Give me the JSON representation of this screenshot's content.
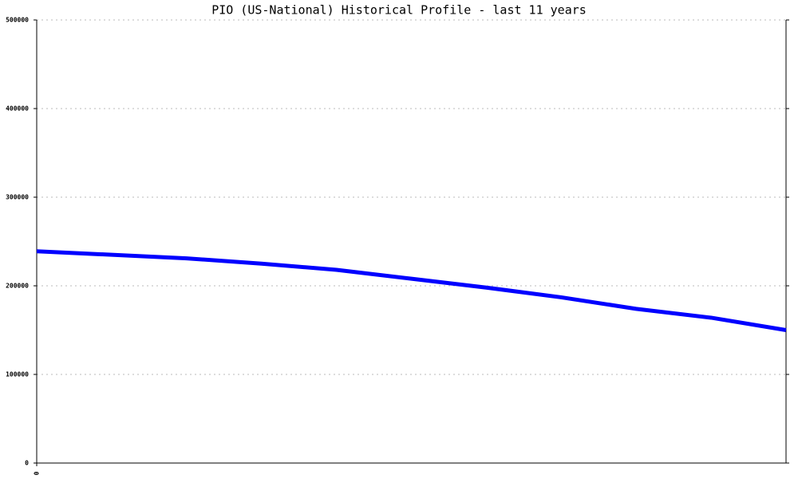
{
  "chart_data": {
    "type": "line",
    "title": "PIO (US-National) Historical Profile - last 11 years",
    "x": [
      0,
      1,
      2,
      3,
      4,
      5,
      6,
      7,
      8,
      9,
      10
    ],
    "xlim": [
      0,
      10
    ],
    "xticks": [
      0
    ],
    "series": [
      {
        "name": "PIO",
        "color": "#0000ff",
        "values": [
          239000,
          235000,
          231000,
          225000,
          218000,
          208000,
          198000,
          187000,
          174000,
          164000,
          150000
        ]
      }
    ],
    "ylim": [
      0,
      500000
    ],
    "yticks": [
      0,
      100000,
      200000,
      300000,
      400000,
      500000
    ],
    "grid": true
  }
}
